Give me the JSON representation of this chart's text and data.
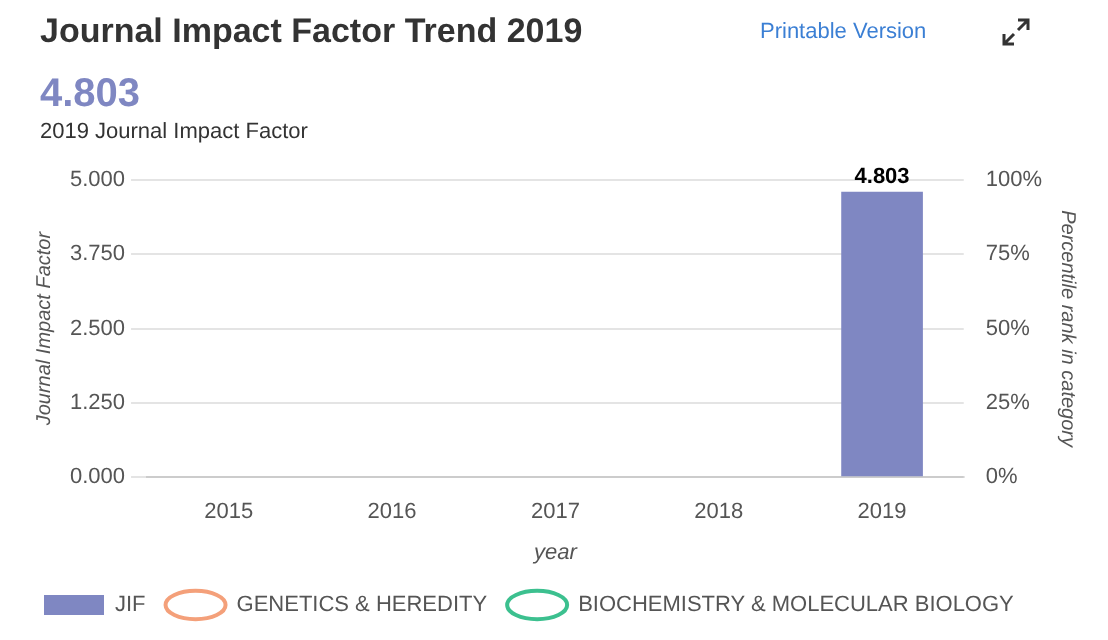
{
  "chart_data": {
    "type": "bar",
    "title": "Journal Impact Factor Trend 2019",
    "annotations": [
      "Printable Version",
      "4.803",
      "2019 Journal Impact Factor"
    ],
    "xlabel": "year",
    "ylabel": "Journal Impact Factor",
    "y2label": "Percentile rank in category",
    "categories": [
      "2015",
      "2016",
      "2017",
      "2018",
      "2019"
    ],
    "series": [
      {
        "name": "JIF",
        "color": "#7f87c2",
        "values": [
          null,
          null,
          null,
          null,
          4.803
        ],
        "value_labels": [
          null,
          null,
          null,
          null,
          "4.803"
        ]
      },
      {
        "name": "GENETICS & HEREDITY",
        "type": "line",
        "color": "#f4a07a",
        "values": [
          null,
          null,
          null,
          null,
          null
        ]
      },
      {
        "name": "BIOCHEMISTRY & MOLECULAR BIOLOGY",
        "type": "line",
        "color": "#3cc08f",
        "values": [
          null,
          null,
          null,
          null,
          null
        ]
      }
    ],
    "ylim": [
      0,
      5
    ],
    "yticks": [
      {
        "value": 0,
        "label": "0.000"
      },
      {
        "value": 1.25,
        "label": "1.250"
      },
      {
        "value": 2.5,
        "label": "2.500"
      },
      {
        "value": 3.75,
        "label": "3.750"
      },
      {
        "value": 5,
        "label": "5.000"
      }
    ],
    "y2lim": [
      0,
      100
    ],
    "y2ticks": [
      {
        "value": 0,
        "label": "0%"
      },
      {
        "value": 25,
        "label": "25%"
      },
      {
        "value": 50,
        "label": "50%"
      },
      {
        "value": 75,
        "label": "75%"
      },
      {
        "value": 100,
        "label": "100%"
      }
    ],
    "grid": "y",
    "legend": "bottom",
    "marker": "circle"
  }
}
